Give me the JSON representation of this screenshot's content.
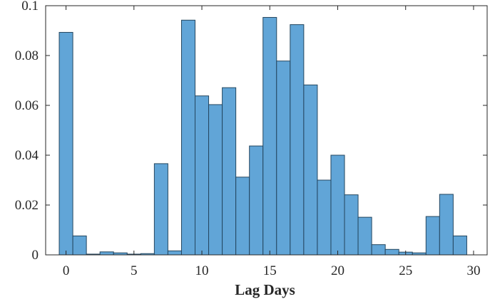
{
  "chart_data": {
    "type": "bar",
    "title": "",
    "xlabel": "Lag Days",
    "ylabel": "",
    "x": [
      0,
      1,
      2,
      3,
      4,
      5,
      6,
      7,
      8,
      9,
      10,
      11,
      12,
      13,
      14,
      15,
      16,
      17,
      18,
      19,
      20,
      21,
      22,
      23,
      24,
      25,
      26,
      27,
      28,
      29
    ],
    "values": [
      0.0893,
      0.0076,
      0.0003,
      0.0012,
      0.0008,
      0.0003,
      0.0005,
      0.0366,
      0.0016,
      0.0942,
      0.0638,
      0.0603,
      0.0671,
      0.0312,
      0.0437,
      0.0953,
      0.0778,
      0.0924,
      0.0682,
      0.03,
      0.04,
      0.0241,
      0.0151,
      0.0041,
      0.0022,
      0.0011,
      0.0008,
      0.0154,
      0.0243,
      0.0076
    ],
    "xlim": [
      -1.5,
      31
    ],
    "ylim": [
      0,
      0.1
    ],
    "xticks": [
      0,
      5,
      10,
      15,
      20,
      25,
      30
    ],
    "xtick_labels": [
      "0",
      "5",
      "10",
      "15",
      "20",
      "25",
      "30"
    ],
    "yticks": [
      0,
      0.02,
      0.04,
      0.06,
      0.08,
      0.1
    ],
    "ytick_labels": [
      "0",
      "0.02",
      "0.04",
      "0.06",
      "0.08",
      "0.1"
    ],
    "grid": false,
    "bar_color": "#61a5d7",
    "edge_color": "#24465f"
  }
}
